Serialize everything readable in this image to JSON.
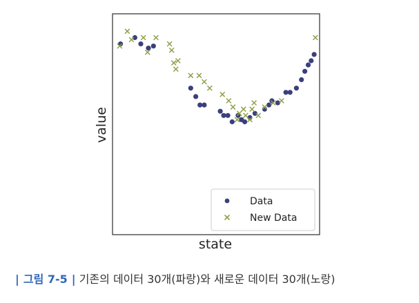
{
  "chart_data": {
    "type": "scatter",
    "xlabel": "state",
    "ylabel": "value",
    "grid": false,
    "legend_position": "bottom-right",
    "series": [
      {
        "name": "Data",
        "marker": "circle",
        "color": "#3b3f7c",
        "points": [
          [
            0.14,
            8.9
          ],
          [
            0.48,
            9.2
          ],
          [
            0.62,
            8.9
          ],
          [
            0.8,
            8.7
          ],
          [
            0.92,
            8.8
          ],
          [
            1.8,
            6.8
          ],
          [
            1.92,
            6.4
          ],
          [
            2.02,
            6.0
          ],
          [
            2.12,
            6.0
          ],
          [
            2.5,
            5.7
          ],
          [
            2.58,
            5.5
          ],
          [
            2.68,
            5.5
          ],
          [
            2.78,
            5.2
          ],
          [
            2.92,
            5.5
          ],
          [
            3.0,
            5.3
          ],
          [
            3.08,
            5.2
          ],
          [
            3.2,
            5.4
          ],
          [
            3.32,
            5.6
          ],
          [
            3.55,
            5.8
          ],
          [
            3.65,
            6.0
          ],
          [
            3.72,
            6.2
          ],
          [
            3.86,
            6.1
          ],
          [
            4.05,
            6.6
          ],
          [
            4.15,
            6.6
          ],
          [
            4.3,
            6.8
          ],
          [
            4.42,
            7.2
          ],
          [
            4.5,
            7.6
          ],
          [
            4.58,
            7.9
          ],
          [
            4.65,
            8.1
          ],
          [
            4.72,
            8.4
          ]
        ]
      },
      {
        "name": "New Data",
        "marker": "x",
        "color": "#8ea04a",
        "points": [
          [
            0.12,
            8.8
          ],
          [
            0.3,
            9.5
          ],
          [
            0.4,
            9.1
          ],
          [
            0.68,
            9.2
          ],
          [
            0.78,
            8.5
          ],
          [
            0.98,
            9.2
          ],
          [
            1.3,
            8.9
          ],
          [
            1.35,
            8.6
          ],
          [
            1.4,
            8.0
          ],
          [
            1.45,
            7.7
          ],
          [
            1.5,
            8.1
          ],
          [
            1.8,
            7.4
          ],
          [
            2.0,
            7.4
          ],
          [
            2.12,
            7.1
          ],
          [
            2.25,
            6.8
          ],
          [
            2.55,
            6.5
          ],
          [
            2.7,
            6.2
          ],
          [
            2.8,
            5.9
          ],
          [
            2.9,
            5.3
          ],
          [
            2.95,
            5.6
          ],
          [
            3.05,
            5.8
          ],
          [
            3.1,
            5.5
          ],
          [
            3.2,
            5.3
          ],
          [
            3.25,
            5.8
          ],
          [
            3.3,
            6.1
          ],
          [
            3.4,
            5.5
          ],
          [
            3.55,
            5.9
          ],
          [
            3.75,
            6.1
          ],
          [
            3.95,
            6.2
          ],
          [
            4.75,
            9.2
          ]
        ]
      }
    ]
  },
  "caption": {
    "bar_left": "|",
    "label": "그림 7-5",
    "bar_right": "|",
    "text": "기존의 데이터 30개(파랑)와 새로운 데이터 30개(노랑)"
  }
}
